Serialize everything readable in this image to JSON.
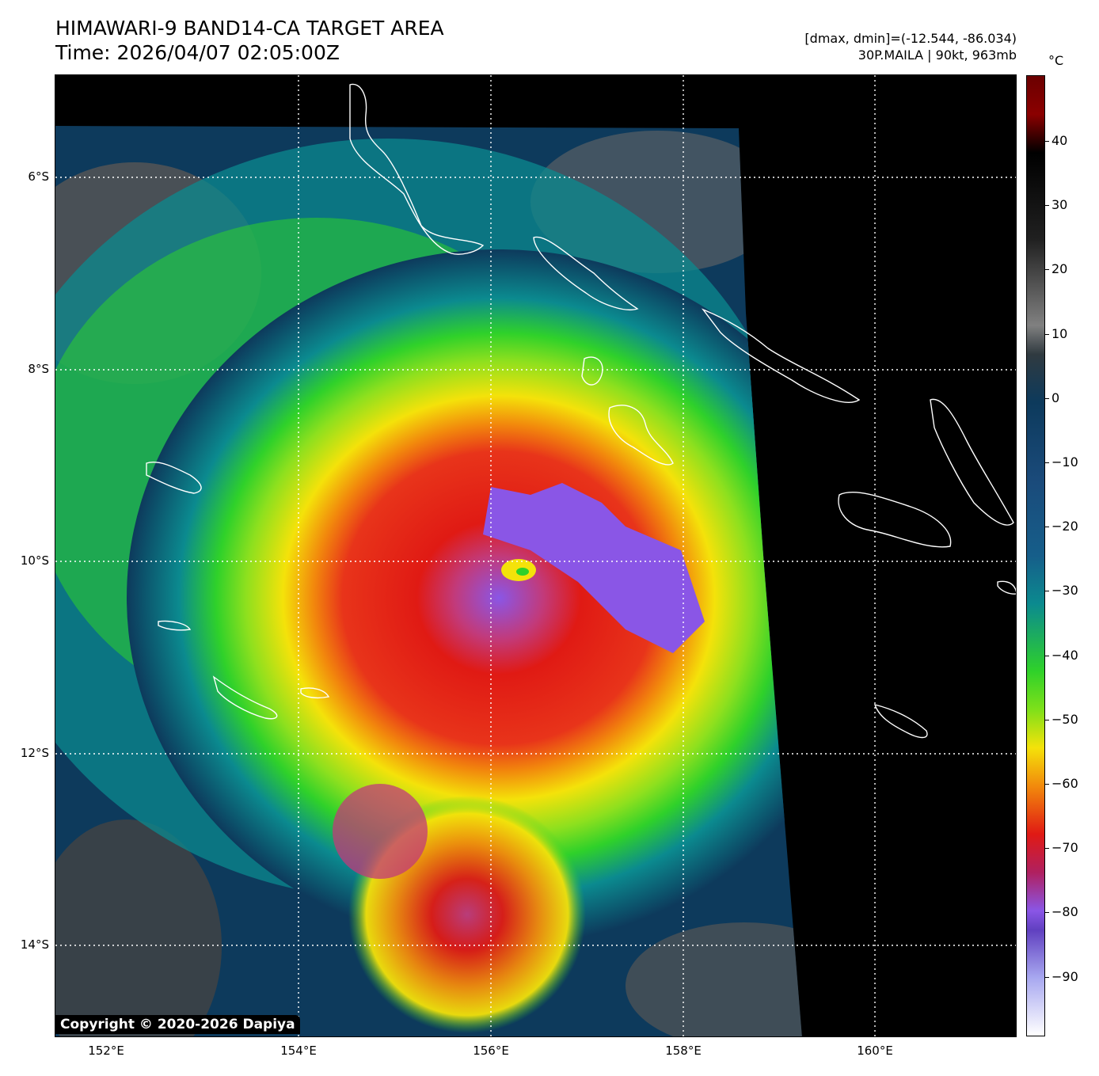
{
  "header": {
    "title_line1": "HIMAWARI-9 BAND14-CA TARGET AREA",
    "title_line2": "Time: 2026/04/07 02:05:00Z",
    "dminmax": "[dmax, dmin]=(-12.544, -86.034)",
    "storm_info": "30P.MAILA | 90kt, 963mb"
  },
  "map": {
    "lat_labels": [
      "6°S",
      "8°S",
      "10°S",
      "12°S",
      "14°S"
    ],
    "lon_labels": [
      "152°E",
      "154°E",
      "156°E",
      "158°E",
      "160°E"
    ],
    "copyright": "Copyright © 2020-2026 Dapiya",
    "storm_center": {
      "lat": -10.0,
      "lon": 156.3
    }
  },
  "colorbar": {
    "unit": "°C",
    "ticks": [
      "40",
      "30",
      "20",
      "10",
      "0",
      "−10",
      "−20",
      "−30",
      "−40",
      "−50",
      "−60",
      "−70",
      "−80",
      "−90"
    ],
    "colors": {
      "warm": "#000000",
      "gray": "#808080",
      "dark_blue": "#0d3a5c",
      "teal": "#0b8a8f",
      "green": "#2fd12a",
      "yellow": "#f4e20a",
      "orange": "#f28a0c",
      "red": "#e01a14",
      "purple": "#8a56e6",
      "cold": "#ffffff"
    }
  }
}
